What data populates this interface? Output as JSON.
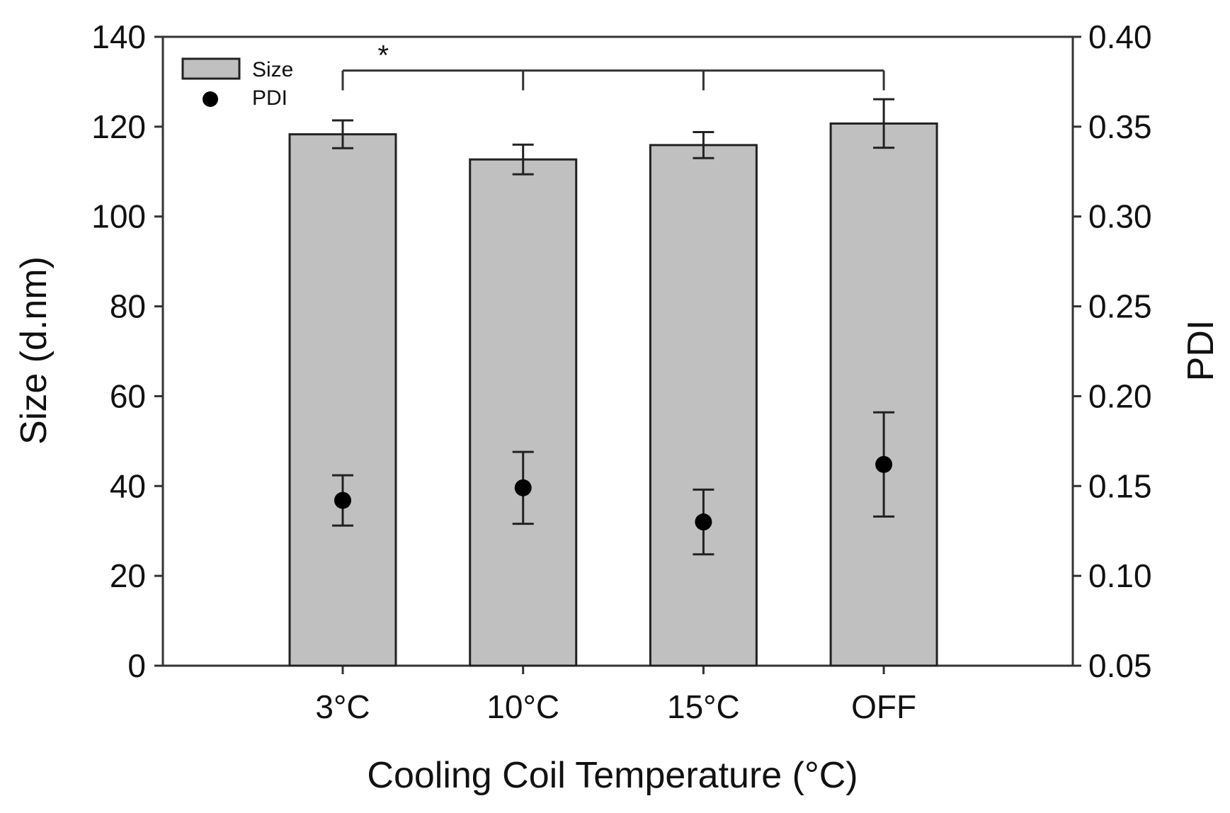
{
  "chart_data": {
    "type": "bar",
    "title": "",
    "xlabel": "Cooling Coil Temperature (°C)",
    "ylabel": "Size (d.nm)",
    "y2label": "PDI",
    "categories": [
      "3°C",
      "10°C",
      "15°C",
      "OFF"
    ],
    "ylim": [
      0,
      140
    ],
    "yticks": [
      0,
      20,
      40,
      60,
      80,
      100,
      120,
      140
    ],
    "y2lim": [
      0.05,
      0.4
    ],
    "y2ticks": [
      0.05,
      0.1,
      0.15,
      0.2,
      0.25,
      0.3,
      0.35,
      0.4
    ],
    "y2tick_labels": [
      "0.05",
      "0.10",
      "0.15",
      "0.20",
      "0.25",
      "0.30",
      "0.35",
      "0.40"
    ],
    "series": [
      {
        "name": "Size",
        "kind": "bar",
        "axis": "left",
        "color": "#c0c0c0",
        "values": [
          118.3,
          112.7,
          115.9,
          120.7
        ],
        "errors": [
          3.1,
          3.3,
          2.9,
          5.4
        ]
      },
      {
        "name": "PDI",
        "kind": "point",
        "axis": "right",
        "color": "#000000",
        "values": [
          0.142,
          0.149,
          0.13,
          0.162
        ],
        "errors": [
          0.014,
          0.02,
          0.018,
          0.029
        ]
      }
    ],
    "significance": {
      "label": "*",
      "from": "3°C",
      "to": "OFF",
      "y": 132.5
    },
    "legend": {
      "position": "top-left",
      "items": [
        "Size",
        "PDI"
      ]
    },
    "grid": false
  }
}
